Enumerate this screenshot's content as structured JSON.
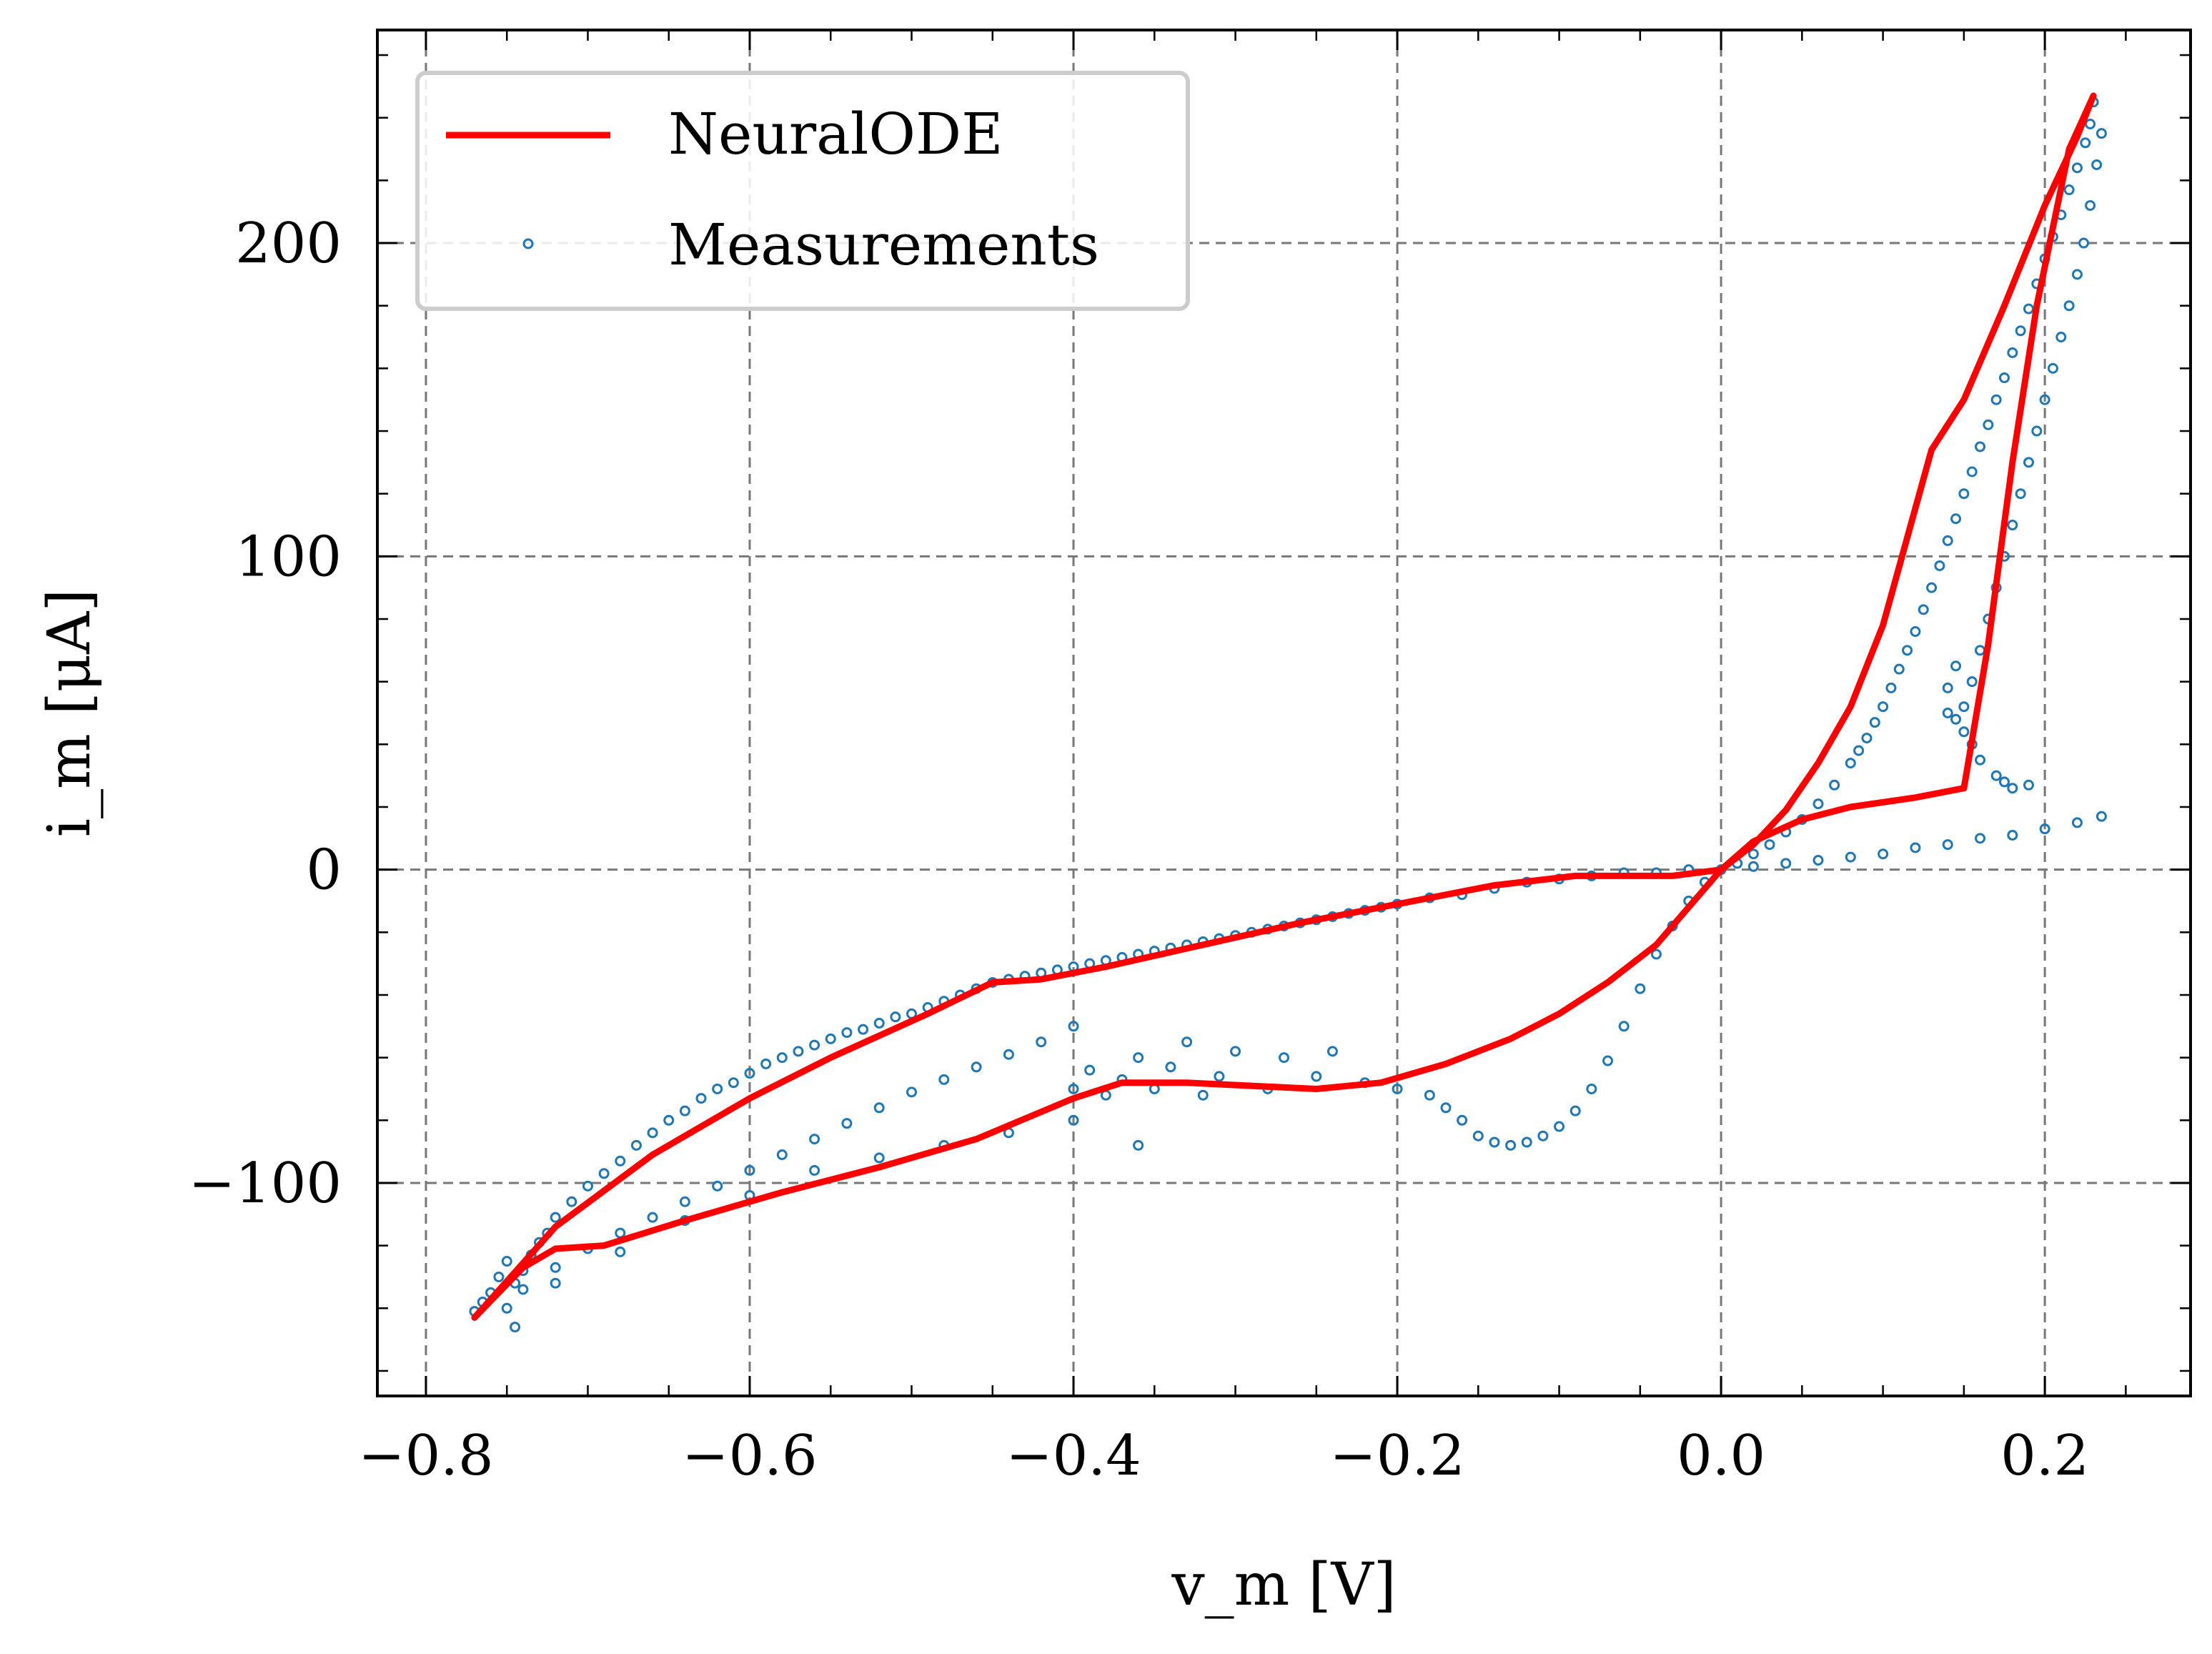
{
  "chart_data": {
    "type": "scatter",
    "xlabel": "v_m [V]",
    "ylabel": "i_m [μA]",
    "xlim": [
      -0.83,
      0.29
    ],
    "ylim": [
      -168,
      268
    ],
    "x_ticks": [
      -0.8,
      -0.6,
      -0.4,
      -0.2,
      0.0,
      0.2
    ],
    "x_tick_labels": [
      "−0.8",
      "−0.6",
      "−0.4",
      "−0.2",
      "0.0",
      "0.2"
    ],
    "y_ticks": [
      -100,
      0,
      100,
      200
    ],
    "y_tick_labels": [
      "−100",
      "0",
      "100",
      "200"
    ],
    "grid": true,
    "legend_position": "top-left",
    "series": [
      {
        "name": "NeuralODE",
        "kind": "line",
        "color": "#ff0000",
        "points": [
          [
            -0.77,
            -143
          ],
          [
            -0.74,
            -127
          ],
          [
            -0.72,
            -121
          ],
          [
            -0.69,
            -120
          ],
          [
            -0.64,
            -112
          ],
          [
            -0.58,
            -103
          ],
          [
            -0.52,
            -95
          ],
          [
            -0.46,
            -86
          ],
          [
            -0.4,
            -73
          ],
          [
            -0.37,
            -68
          ],
          [
            -0.33,
            -68
          ],
          [
            -0.29,
            -69
          ],
          [
            -0.25,
            -70
          ],
          [
            -0.21,
            -68
          ],
          [
            -0.17,
            -62
          ],
          [
            -0.13,
            -54
          ],
          [
            -0.1,
            -46
          ],
          [
            -0.07,
            -36
          ],
          [
            -0.04,
            -24
          ],
          [
            -0.02,
            -12
          ],
          [
            0.0,
            0
          ],
          [
            0.02,
            9
          ],
          [
            0.05,
            16
          ],
          [
            0.08,
            20
          ],
          [
            0.12,
            23
          ],
          [
            0.15,
            26
          ],
          [
            0.165,
            72
          ],
          [
            0.18,
            130
          ],
          [
            0.195,
            180
          ],
          [
            0.215,
            230
          ],
          [
            0.23,
            247
          ],
          [
            0.22,
            234
          ],
          [
            0.2,
            212
          ],
          [
            0.175,
            180
          ],
          [
            0.15,
            150
          ],
          [
            0.13,
            134
          ],
          [
            0.115,
            106
          ],
          [
            0.1,
            78
          ],
          [
            0.08,
            52
          ],
          [
            0.06,
            34
          ],
          [
            0.04,
            19
          ],
          [
            0.02,
            8
          ],
          [
            0.0,
            0
          ],
          [
            -0.03,
            -2
          ],
          [
            -0.06,
            -2
          ],
          [
            -0.09,
            -2
          ],
          [
            -0.14,
            -5
          ],
          [
            -0.2,
            -11
          ],
          [
            -0.26,
            -17
          ],
          [
            -0.32,
            -24
          ],
          [
            -0.38,
            -31
          ],
          [
            -0.42,
            -35
          ],
          [
            -0.45,
            -36
          ],
          [
            -0.49,
            -46
          ],
          [
            -0.55,
            -60
          ],
          [
            -0.6,
            -73
          ],
          [
            -0.66,
            -91
          ],
          [
            -0.72,
            -114
          ],
          [
            -0.77,
            -143
          ]
        ]
      },
      {
        "name": "Measurements",
        "kind": "scatter",
        "color": "#1f77b4",
        "points": [
          [
            -0.77,
            -141
          ],
          [
            -0.765,
            -138
          ],
          [
            -0.76,
            -135
          ],
          [
            -0.755,
            -130
          ],
          [
            -0.75,
            -125
          ],
          [
            -0.745,
            -132
          ],
          [
            -0.74,
            -128
          ],
          [
            -0.735,
            -123
          ],
          [
            -0.73,
            -119
          ],
          [
            -0.725,
            -116
          ],
          [
            -0.72,
            -111
          ],
          [
            -0.71,
            -106
          ],
          [
            -0.7,
            -101
          ],
          [
            -0.69,
            -97
          ],
          [
            -0.68,
            -93
          ],
          [
            -0.67,
            -88
          ],
          [
            -0.66,
            -84
          ],
          [
            -0.65,
            -80
          ],
          [
            -0.64,
            -77
          ],
          [
            -0.63,
            -73
          ],
          [
            -0.62,
            -70
          ],
          [
            -0.61,
            -68
          ],
          [
            -0.6,
            -65
          ],
          [
            -0.59,
            -62
          ],
          [
            -0.58,
            -60
          ],
          [
            -0.57,
            -58
          ],
          [
            -0.56,
            -56
          ],
          [
            -0.55,
            -54
          ],
          [
            -0.54,
            -52
          ],
          [
            -0.53,
            -51
          ],
          [
            -0.52,
            -49
          ],
          [
            -0.51,
            -47
          ],
          [
            -0.5,
            -46
          ],
          [
            -0.49,
            -44
          ],
          [
            -0.48,
            -42
          ],
          [
            -0.47,
            -40
          ],
          [
            -0.46,
            -38
          ],
          [
            -0.45,
            -36
          ],
          [
            -0.44,
            -35
          ],
          [
            -0.43,
            -34
          ],
          [
            -0.42,
            -33
          ],
          [
            -0.41,
            -32
          ],
          [
            -0.4,
            -31
          ],
          [
            -0.39,
            -30
          ],
          [
            -0.38,
            -29
          ],
          [
            -0.37,
            -28
          ],
          [
            -0.36,
            -27
          ],
          [
            -0.35,
            -26
          ],
          [
            -0.34,
            -25
          ],
          [
            -0.33,
            -24
          ],
          [
            -0.32,
            -23
          ],
          [
            -0.31,
            -22
          ],
          [
            -0.3,
            -21
          ],
          [
            -0.29,
            -20
          ],
          [
            -0.28,
            -19
          ],
          [
            -0.27,
            -18
          ],
          [
            -0.26,
            -17
          ],
          [
            -0.25,
            -16
          ],
          [
            -0.24,
            -15
          ],
          [
            -0.23,
            -14
          ],
          [
            -0.22,
            -13
          ],
          [
            -0.21,
            -12
          ],
          [
            -0.2,
            -11
          ],
          [
            -0.18,
            -9
          ],
          [
            -0.16,
            -8
          ],
          [
            -0.14,
            -6
          ],
          [
            -0.12,
            -4
          ],
          [
            -0.1,
            -3
          ],
          [
            -0.08,
            -2
          ],
          [
            -0.06,
            -1
          ],
          [
            -0.04,
            -1
          ],
          [
            -0.02,
            0
          ],
          [
            0.0,
            0
          ],
          [
            0.02,
            1
          ],
          [
            0.04,
            2
          ],
          [
            0.06,
            3
          ],
          [
            0.08,
            4
          ],
          [
            0.1,
            5
          ],
          [
            0.12,
            7
          ],
          [
            0.14,
            8
          ],
          [
            0.16,
            10
          ],
          [
            0.18,
            11
          ],
          [
            0.2,
            13
          ],
          [
            0.22,
            15
          ],
          [
            0.235,
            17
          ],
          [
            0.23,
            245
          ],
          [
            0.228,
            238
          ],
          [
            0.225,
            232
          ],
          [
            0.22,
            224
          ],
          [
            0.215,
            217
          ],
          [
            0.21,
            209
          ],
          [
            0.205,
            202
          ],
          [
            0.2,
            195
          ],
          [
            0.195,
            187
          ],
          [
            0.19,
            179
          ],
          [
            0.185,
            172
          ],
          [
            0.18,
            165
          ],
          [
            0.175,
            157
          ],
          [
            0.17,
            150
          ],
          [
            0.165,
            142
          ],
          [
            0.16,
            135
          ],
          [
            0.155,
            127
          ],
          [
            0.15,
            120
          ],
          [
            0.145,
            112
          ],
          [
            0.14,
            105
          ],
          [
            0.135,
            97
          ],
          [
            0.13,
            90
          ],
          [
            0.125,
            83
          ],
          [
            0.12,
            76
          ],
          [
            0.115,
            70
          ],
          [
            0.11,
            64
          ],
          [
            0.105,
            58
          ],
          [
            0.1,
            52
          ],
          [
            0.095,
            47
          ],
          [
            0.09,
            42
          ],
          [
            0.085,
            38
          ],
          [
            0.08,
            34
          ],
          [
            0.07,
            27
          ],
          [
            0.06,
            21
          ],
          [
            0.05,
            16
          ],
          [
            0.04,
            12
          ],
          [
            0.03,
            8
          ],
          [
            0.02,
            5
          ],
          [
            0.01,
            2
          ],
          [
            0.235,
            235
          ],
          [
            0.232,
            225
          ],
          [
            0.228,
            212
          ],
          [
            0.224,
            200
          ],
          [
            0.22,
            190
          ],
          [
            0.215,
            180
          ],
          [
            0.21,
            170
          ],
          [
            0.205,
            160
          ],
          [
            0.2,
            150
          ],
          [
            0.195,
            140
          ],
          [
            0.19,
            130
          ],
          [
            0.185,
            120
          ],
          [
            0.18,
            110
          ],
          [
            0.175,
            100
          ],
          [
            0.17,
            90
          ],
          [
            0.165,
            80
          ],
          [
            0.16,
            70
          ],
          [
            0.155,
            60
          ],
          [
            0.15,
            52
          ],
          [
            0.145,
            48
          ],
          [
            0.14,
            50
          ],
          [
            0.14,
            58
          ],
          [
            0.145,
            65
          ],
          [
            0.15,
            44
          ],
          [
            0.155,
            40
          ],
          [
            0.16,
            35
          ],
          [
            0.17,
            30
          ],
          [
            0.175,
            28
          ],
          [
            0.18,
            26
          ],
          [
            0.19,
            27
          ],
          [
            -0.01,
            -4
          ],
          [
            -0.02,
            -10
          ],
          [
            -0.03,
            -18
          ],
          [
            -0.04,
            -27
          ],
          [
            -0.05,
            -38
          ],
          [
            -0.06,
            -50
          ],
          [
            -0.07,
            -61
          ],
          [
            -0.08,
            -70
          ],
          [
            -0.09,
            -77
          ],
          [
            -0.1,
            -82
          ],
          [
            -0.11,
            -85
          ],
          [
            -0.12,
            -87
          ],
          [
            -0.13,
            -88
          ],
          [
            -0.14,
            -87
          ],
          [
            -0.15,
            -85
          ],
          [
            -0.16,
            -80
          ],
          [
            -0.17,
            -76
          ],
          [
            -0.18,
            -72
          ],
          [
            -0.2,
            -70
          ],
          [
            -0.22,
            -68
          ],
          [
            -0.24,
            -58
          ],
          [
            -0.25,
            -66
          ],
          [
            -0.27,
            -60
          ],
          [
            -0.28,
            -70
          ],
          [
            -0.3,
            -58
          ],
          [
            -0.31,
            -66
          ],
          [
            -0.32,
            -72
          ],
          [
            -0.33,
            -55
          ],
          [
            -0.34,
            -63
          ],
          [
            -0.35,
            -70
          ],
          [
            -0.36,
            -60
          ],
          [
            -0.37,
            -67
          ],
          [
            -0.38,
            -72
          ],
          [
            -0.39,
            -64
          ],
          [
            -0.4,
            -70
          ],
          [
            -0.4,
            -50
          ],
          [
            -0.42,
            -55
          ],
          [
            -0.44,
            -59
          ],
          [
            -0.46,
            -63
          ],
          [
            -0.48,
            -67
          ],
          [
            -0.5,
            -71
          ],
          [
            -0.52,
            -76
          ],
          [
            -0.54,
            -81
          ],
          [
            -0.56,
            -86
          ],
          [
            -0.58,
            -91
          ],
          [
            -0.6,
            -96
          ],
          [
            -0.62,
            -101
          ],
          [
            -0.64,
            -106
          ],
          [
            -0.66,
            -111
          ],
          [
            -0.68,
            -116
          ],
          [
            -0.7,
            -121
          ],
          [
            -0.72,
            -127
          ],
          [
            -0.74,
            -134
          ],
          [
            -0.75,
            -140
          ],
          [
            -0.745,
            -146
          ],
          [
            -0.36,
            -88
          ],
          [
            -0.4,
            -80
          ],
          [
            -0.44,
            -84
          ],
          [
            -0.48,
            -88
          ],
          [
            -0.52,
            -92
          ],
          [
            -0.56,
            -96
          ],
          [
            -0.6,
            -104
          ],
          [
            -0.64,
            -112
          ],
          [
            -0.68,
            -122
          ],
          [
            -0.72,
            -132
          ]
        ]
      }
    ]
  }
}
